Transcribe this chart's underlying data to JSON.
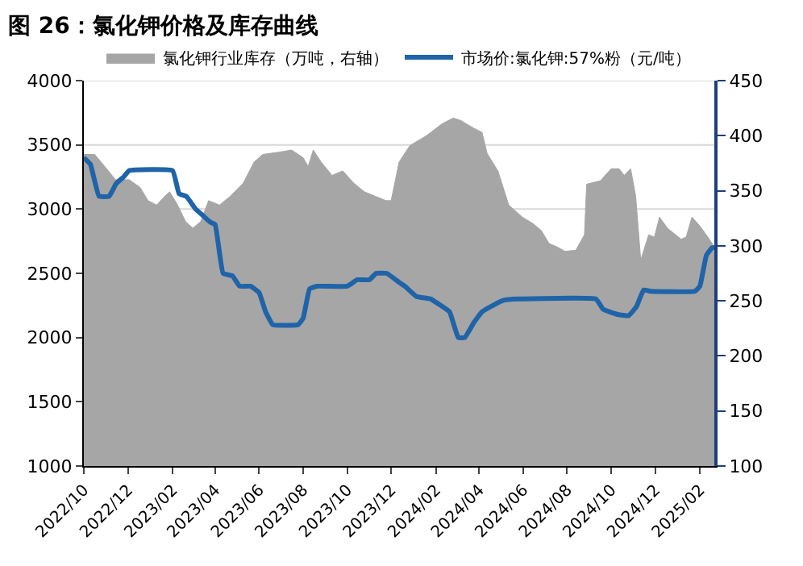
{
  "chart_data": {
    "type": "line",
    "title": "图 26：氯化钾价格及库存曲线",
    "xlim": [
      "2022-10-01",
      "2025-02-21"
    ],
    "xticks": [
      {
        "value": "2022-10-01",
        "label": "2022/10"
      },
      {
        "value": "2022-12-01",
        "label": "2022/12"
      },
      {
        "value": "2023-02-01",
        "label": "2023/02"
      },
      {
        "value": "2023-04-01",
        "label": "2023/04"
      },
      {
        "value": "2023-06-01",
        "label": "2023/06"
      },
      {
        "value": "2023-08-01",
        "label": "2023/08"
      },
      {
        "value": "2023-10-01",
        "label": "2023/10"
      },
      {
        "value": "2023-12-01",
        "label": "2023/12"
      },
      {
        "value": "2024-02-01",
        "label": "2024/02"
      },
      {
        "value": "2024-04-01",
        "label": "2024/04"
      },
      {
        "value": "2024-06-01",
        "label": "2024/06"
      },
      {
        "value": "2024-08-01",
        "label": "2024/08"
      },
      {
        "value": "2024-10-01",
        "label": "2024/10"
      },
      {
        "value": "2024-12-01",
        "label": "2024/12"
      },
      {
        "value": "2025-02-01",
        "label": "2025/02"
      }
    ],
    "ylim": [
      1000,
      4000
    ],
    "yticks": [
      1000,
      1500,
      2000,
      2500,
      3000,
      3500,
      4000
    ],
    "y2lim": [
      100,
      450
    ],
    "y2ticks": [
      100,
      150,
      200,
      250,
      300,
      350,
      400,
      450
    ],
    "grid": "y",
    "legend": "top",
    "marker": "none",
    "line_style": "solid",
    "series": [
      {
        "name": "氯化钾行业库存（万吨，右轴）",
        "type": "area",
        "axis": "y2",
        "color": "#a6a6a6",
        "x": [
          "2022-10-01",
          "2022-10-16",
          "2022-10-30",
          "2022-11-14",
          "2022-12-03",
          "2022-12-18",
          "2022-12-29",
          "2023-01-10",
          "2023-01-21",
          "2023-01-28",
          "2023-02-08",
          "2023-02-19",
          "2023-03-01",
          "2023-03-12",
          "2023-03-23",
          "2023-04-07",
          "2023-04-22",
          "2023-05-10",
          "2023-05-25",
          "2023-06-06",
          "2023-06-28",
          "2023-07-16",
          "2023-08-01",
          "2023-08-08",
          "2023-08-15",
          "2023-08-26",
          "2023-09-10",
          "2023-09-25",
          "2023-10-10",
          "2023-10-25",
          "2023-11-09",
          "2023-11-24",
          "2023-12-01",
          "2023-12-12",
          "2023-12-27",
          "2024-01-19",
          "2024-02-10",
          "2024-02-25",
          "2024-03-06",
          "2024-03-24",
          "2024-04-05",
          "2024-04-12",
          "2024-04-27",
          "2024-05-12",
          "2024-05-31",
          "2024-06-15",
          "2024-06-26",
          "2024-07-07",
          "2024-07-18",
          "2024-07-29",
          "2024-08-13",
          "2024-08-25",
          "2024-08-28",
          "2024-09-16",
          "2024-10-01",
          "2024-10-12",
          "2024-10-19",
          "2024-10-28",
          "2024-11-04",
          "2024-11-11",
          "2024-11-22",
          "2024-11-30",
          "2024-12-07",
          "2024-12-18",
          "2025-01-06",
          "2025-01-13",
          "2025-01-21",
          "2025-02-01",
          "2025-02-12",
          "2025-02-21"
        ],
        "values": [
          383,
          383,
          372,
          360,
          360,
          353,
          341,
          337,
          345,
          349,
          337,
          322,
          316,
          322,
          341,
          337,
          345,
          357,
          376,
          383,
          385,
          387,
          380,
          372,
          387,
          376,
          364,
          368,
          357,
          349,
          345,
          341,
          341,
          376,
          391,
          400,
          411,
          416,
          414,
          407,
          403,
          384,
          368,
          337,
          326,
          320,
          314,
          302,
          299,
          295,
          296,
          310,
          356,
          359,
          370,
          370,
          364,
          370,
          345,
          287,
          310,
          308,
          326,
          316,
          306,
          308,
          326,
          318,
          308,
          299
        ]
      },
      {
        "name": "市场价:氯化钾:57%粉（元/吨）",
        "color": "#1f64a8",
        "x": [
          "2022-10-01",
          "2022-10-10",
          "2022-10-22",
          "2022-11-05",
          "2022-11-15",
          "2022-11-25",
          "2022-12-03",
          "2023-02-01",
          "2023-02-10",
          "2023-02-20",
          "2023-03-05",
          "2023-03-15",
          "2023-03-25",
          "2023-04-01",
          "2023-04-12",
          "2023-04-25",
          "2023-05-05",
          "2023-05-20",
          "2023-06-01",
          "2023-06-10",
          "2023-06-20",
          "2023-07-25",
          "2023-08-01",
          "2023-08-10",
          "2023-08-20",
          "2023-10-01",
          "2023-10-15",
          "2023-11-01",
          "2023-11-10",
          "2023-11-25",
          "2023-12-12",
          "2023-12-20",
          "2024-01-05",
          "2024-01-25",
          "2024-02-05",
          "2024-02-20",
          "2024-03-03",
          "2024-03-12",
          "2024-03-25",
          "2024-04-05",
          "2024-04-20",
          "2024-05-05",
          "2024-05-25",
          "2024-09-10",
          "2024-09-20",
          "2024-10-10",
          "2024-10-25",
          "2024-11-05",
          "2024-11-15",
          "2024-11-25",
          "2025-01-25",
          "2025-02-01",
          "2025-02-10",
          "2025-02-18",
          "2025-02-21"
        ],
        "values": [
          3400,
          3350,
          3100,
          3100,
          3200,
          3250,
          3300,
          3300,
          3120,
          3100,
          3000,
          2950,
          2900,
          2880,
          2500,
          2480,
          2400,
          2400,
          2350,
          2200,
          2100,
          2100,
          2150,
          2380,
          2400,
          2400,
          2450,
          2450,
          2500,
          2500,
          2430,
          2400,
          2320,
          2300,
          2260,
          2200,
          2000,
          2000,
          2120,
          2200,
          2250,
          2290,
          2300,
          2300,
          2220,
          2180,
          2170,
          2240,
          2370,
          2360,
          2360,
          2400,
          2640,
          2700,
          2700
        ]
      }
    ]
  }
}
